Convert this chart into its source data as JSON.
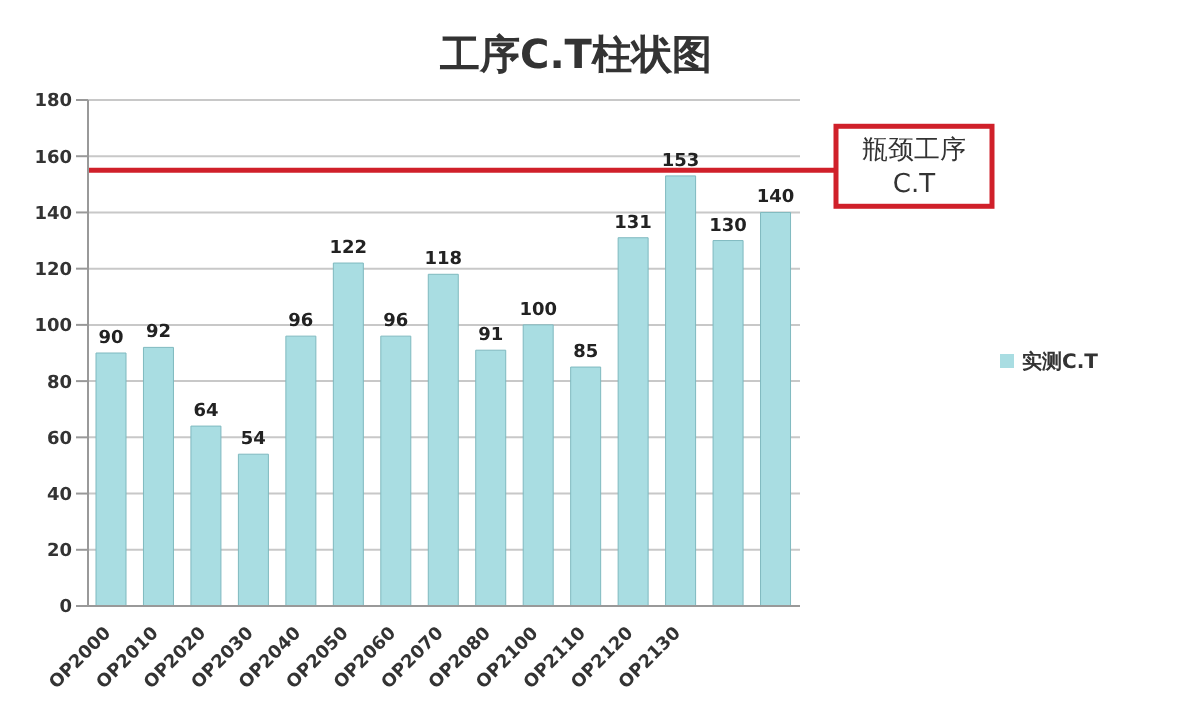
{
  "chart_data": {
    "type": "bar",
    "title": "工序C.T柱状图",
    "categories": [
      "OP2000",
      "OP2010",
      "OP2020",
      "OP2030",
      "OP2040",
      "OP2050",
      "OP2060",
      "OP2070",
      "OP2080",
      "OP2100",
      "OP2110",
      "OP2120",
      "OP2130",
      null,
      null
    ],
    "series": [
      {
        "name": "实测C.T",
        "color": "#a9dde2",
        "values": [
          90,
          92,
          64,
          54,
          96,
          122,
          96,
          118,
          91,
          100,
          85,
          131,
          153,
          130,
          140
        ]
      }
    ],
    "ylim": [
      0,
      180
    ],
    "yticks": [
      0,
      20,
      40,
      60,
      80,
      100,
      120,
      140,
      160,
      180
    ],
    "grid": "y",
    "legend": "right",
    "data_labels": true,
    "ref_lines": [
      {
        "axis": "y",
        "value": 155,
        "label": "瓶颈工序\nC.T",
        "color": "#d0202a"
      }
    ]
  }
}
